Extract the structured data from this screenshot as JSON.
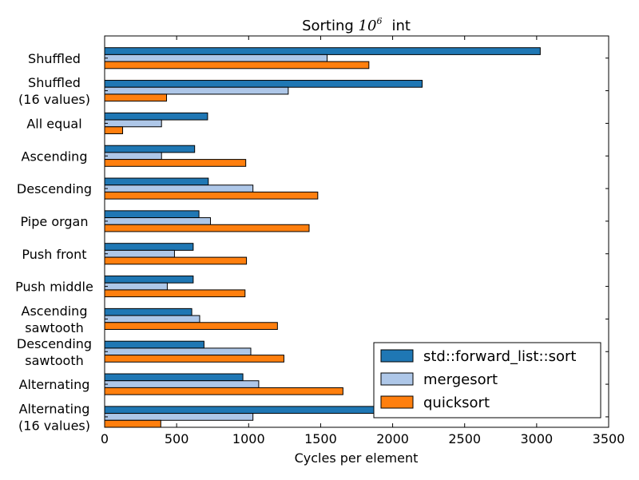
{
  "chart_data": {
    "type": "bar",
    "orientation": "horizontal",
    "title": "Sorting 10⁶  int",
    "title_parts": {
      "prefix": "Sorting ",
      "base": "10",
      "exponent": "6",
      "suffix": "int"
    },
    "xlabel": "Cycles per element",
    "ylabel": "",
    "xlim": [
      0,
      3500
    ],
    "xticks": [
      0,
      500,
      1000,
      1500,
      2000,
      2500,
      3000,
      3500
    ],
    "grid": false,
    "legend_position": "bottom-right",
    "categories": [
      [
        "Shuffled"
      ],
      [
        "Shuffled",
        "(16 values)"
      ],
      [
        "All equal"
      ],
      [
        "Ascending"
      ],
      [
        "Descending"
      ],
      [
        "Pipe organ"
      ],
      [
        "Push front"
      ],
      [
        "Push middle"
      ],
      [
        "Ascending",
        "sawtooth"
      ],
      [
        "Descending",
        "sawtooth"
      ],
      [
        "Alternating"
      ],
      [
        "Alternating",
        "(16 values)"
      ]
    ],
    "series": [
      {
        "name": "std::forward_list::sort",
        "color": "#1f77b4",
        "values": [
          3025,
          2205,
          715,
          625,
          720,
          655,
          615,
          615,
          605,
          690,
          960,
          1875
        ]
      },
      {
        "name": "mergesort",
        "color": "#aec7e8",
        "values": [
          1545,
          1275,
          395,
          395,
          1030,
          735,
          485,
          435,
          660,
          1015,
          1070,
          1030
        ]
      },
      {
        "name": "quicksort",
        "color": "#ff7f0e",
        "values": [
          1835,
          430,
          125,
          980,
          1480,
          1420,
          985,
          975,
          1200,
          1245,
          1655,
          390
        ]
      }
    ]
  }
}
